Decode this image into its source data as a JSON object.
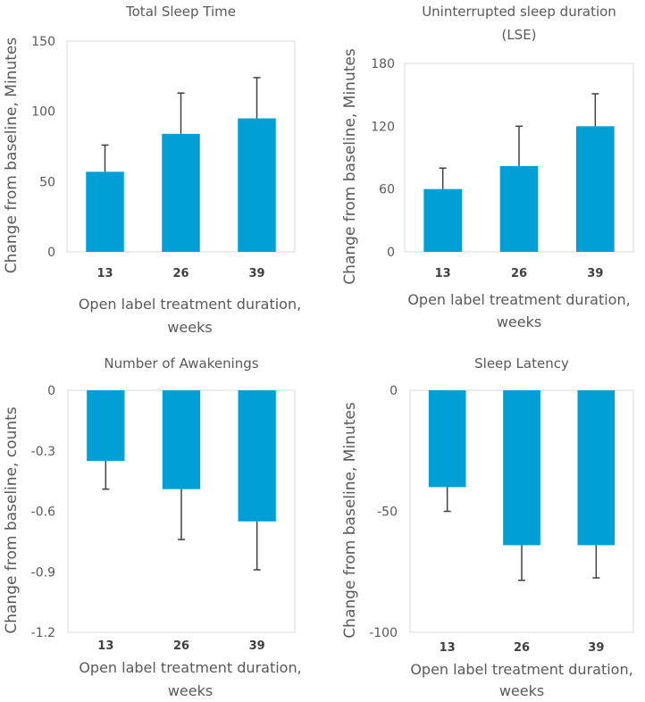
{
  "colors": {
    "bar": "#00A0D6",
    "error_bar": "#404040",
    "frame": "#D9D9D9",
    "text": "#595959"
  },
  "chart_data": [
    {
      "type": "bar",
      "title": [
        "Total Sleep Time"
      ],
      "categories": [
        "13",
        "26",
        "39"
      ],
      "values": [
        57,
        84,
        95
      ],
      "error_upper": [
        76,
        113,
        124
      ],
      "ylim": [
        0,
        150
      ],
      "yticks": [
        "0",
        "50",
        "100",
        "150"
      ],
      "ylabel": "Change from baseline, Minutes",
      "xlabel": [
        "Open label treatment duration,",
        "weeks"
      ]
    },
    {
      "type": "bar",
      "title": [
        "Uninterrupted sleep  duration",
        "(LSE)"
      ],
      "categories": [
        "13",
        "26",
        "39"
      ],
      "values": [
        60,
        82,
        120
      ],
      "error_upper": [
        80,
        120,
        151
      ],
      "ylim": [
        0,
        180
      ],
      "yticks": [
        "0",
        "60",
        "120",
        "180"
      ],
      "ylabel": "Change from baseline, Minutes",
      "xlabel": [
        "Open label treatment duration,",
        "weeks"
      ]
    },
    {
      "type": "bar",
      "title": [
        "Number of Awakenings"
      ],
      "categories": [
        "13",
        "26",
        "39"
      ],
      "values": [
        -0.35,
        -0.49,
        -0.65
      ],
      "error_lower": [
        -0.49,
        -0.74,
        -0.89
      ],
      "ylim": [
        -1.2,
        0
      ],
      "yticks": [
        "-1.2",
        "-0.9",
        "-0.6",
        "-0.3",
        "0"
      ],
      "ylabel": "Change from baseline, counts",
      "xlabel": [
        "Open label treatment duration,",
        "weeks"
      ]
    },
    {
      "type": "bar",
      "title": [
        "Sleep Latency"
      ],
      "categories": [
        "13",
        "26",
        "39"
      ],
      "values": [
        -40,
        -64,
        -64
      ],
      "error_lower": [
        -50,
        -78.5,
        -77.5
      ],
      "ylim": [
        -100,
        0
      ],
      "yticks": [
        "-100",
        "-50",
        "0"
      ],
      "ylabel": "Change from baseline, Minutes",
      "xlabel": [
        "Open label treatment duration,",
        "weeks"
      ]
    }
  ]
}
